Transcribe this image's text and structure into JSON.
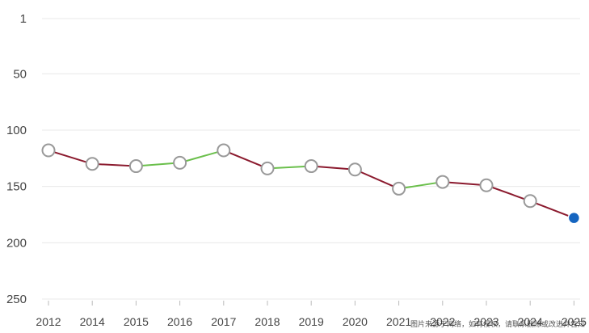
{
  "chart_data": {
    "type": "line",
    "title": "",
    "xlabel": "",
    "ylabel": "",
    "y_axis": {
      "reversed": true,
      "range": [
        1,
        250
      ],
      "ticks": [
        "1",
        "50",
        "100",
        "150",
        "200",
        "250"
      ]
    },
    "grid": true,
    "x": [
      "2012",
      "2014",
      "2015",
      "2016",
      "2017",
      "2018",
      "2019",
      "2020",
      "2021",
      "2022",
      "2023",
      "2024",
      "2025"
    ],
    "series": [
      {
        "values": [
          118,
          130,
          132,
          129,
          118,
          134,
          132,
          135,
          152,
          146,
          149,
          163,
          178
        ]
      }
    ],
    "highlight_index": 12,
    "colors": {
      "decline": "#8b1a2e",
      "improve": "#6abf4b",
      "marker_fill": "#ffffff",
      "marker_stroke": "#999999",
      "highlight": "#1565c0",
      "grid": "#e8e8e8",
      "tick_text": "#444444"
    }
  },
  "watermark": "图片来源于网络，如有侵权，请联系删除或改进并告知"
}
